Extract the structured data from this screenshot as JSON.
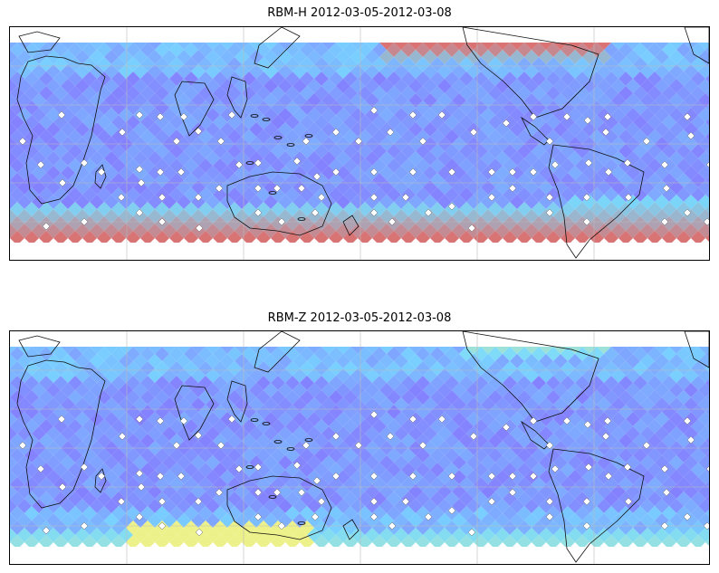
{
  "panels": [
    {
      "title": "RBM-H 2012-03-05-2012-03-08",
      "high_lat_level": "high",
      "colors": {
        "low": "#6f6bff",
        "mid": "#5fd3ff",
        "high": "#d45a5a"
      }
    },
    {
      "title": "RBM-Z 2012-03-05-2012-03-08",
      "high_lat_level": "moderate",
      "colors": {
        "low": "#6f6bff",
        "mid": "#5fd3ff",
        "high": "#f0f070"
      }
    }
  ]
}
